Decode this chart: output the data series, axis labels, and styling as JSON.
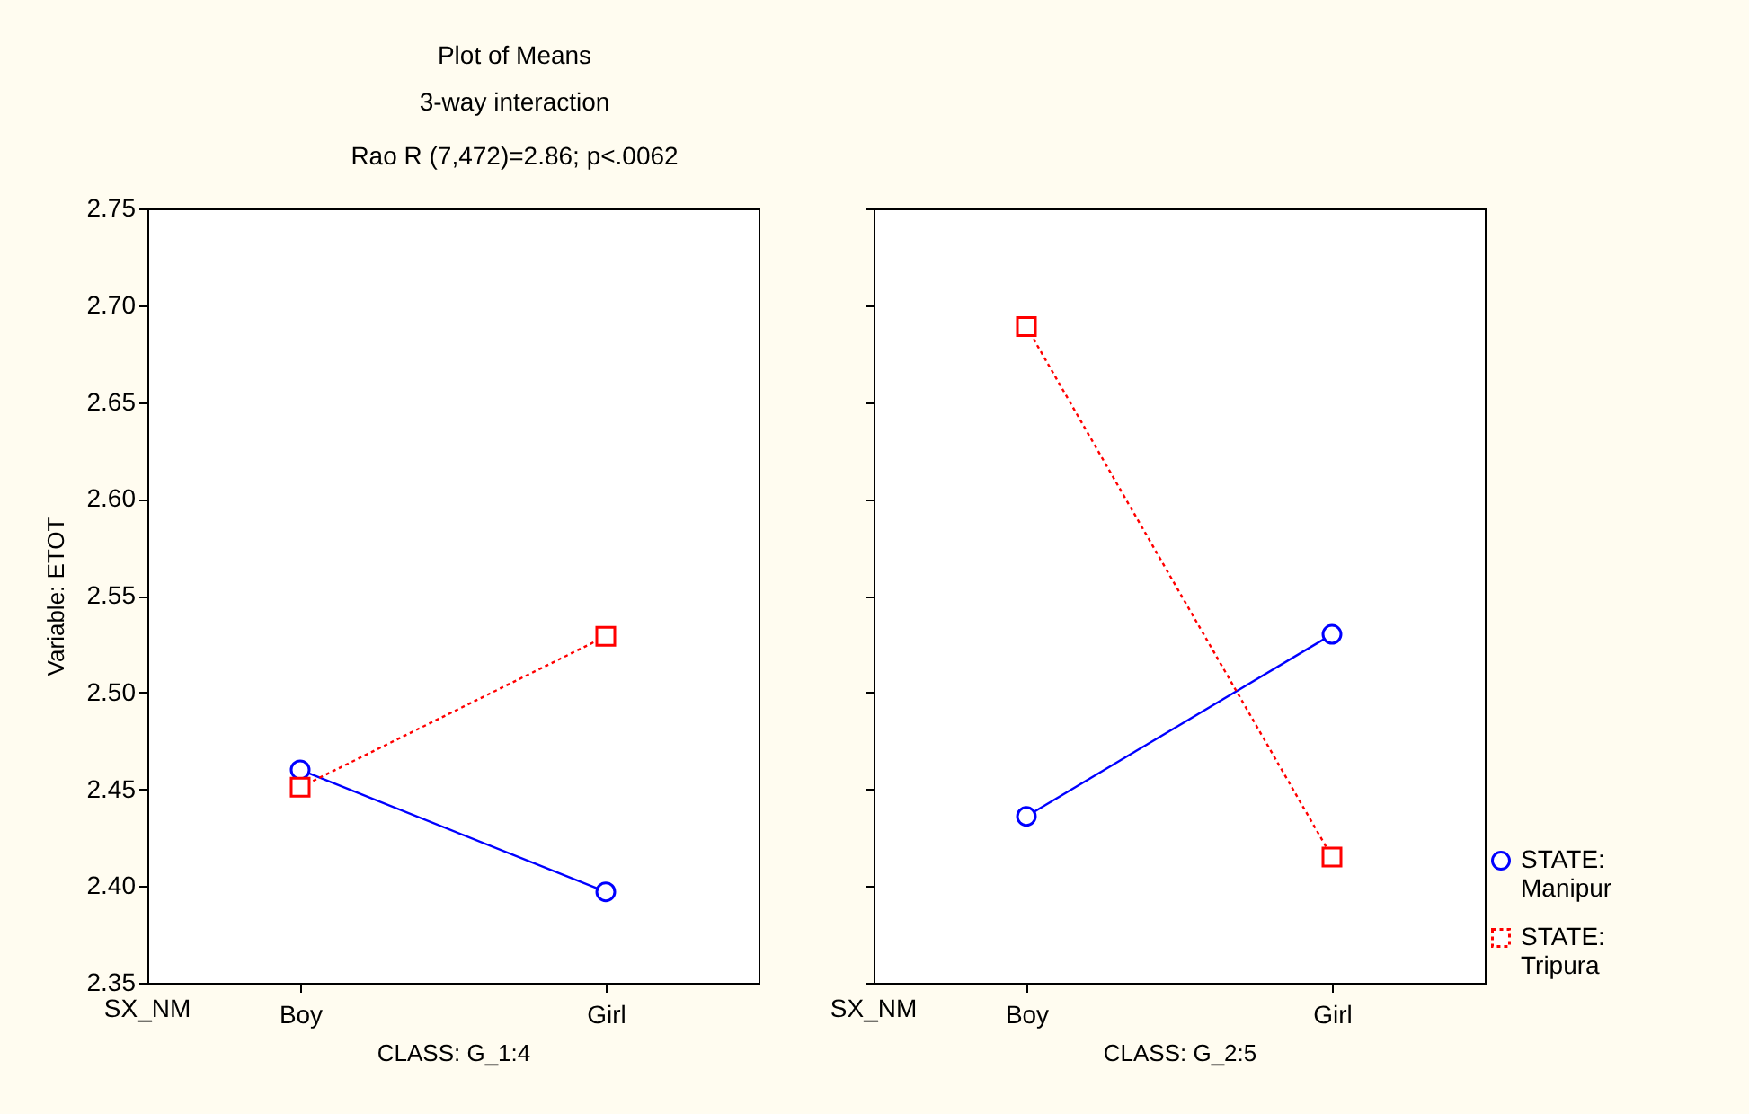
{
  "chart_data": [
    {
      "type": "line",
      "title": "Plot of Means",
      "subtitle": "3-way interaction",
      "annotations": [
        "Rao R (7,472)=2.86; p<.0062",
        "SX_NM"
      ],
      "xlabel": "CLASS: G_1:4",
      "ylabel": "Variable: ETOT",
      "categories": [
        "Boy",
        "Girl"
      ],
      "ylim": [
        2.35,
        2.75
      ],
      "yticks": [
        2.35,
        {
          "value": 2.4,
          "label": "2.40"
        },
        2.45,
        {
          "value": 2.5,
          "label": "2.50"
        },
        2.55,
        {
          "value": 2.6,
          "label": "2.60"
        },
        2.65,
        {
          "value": 2.7,
          "label": "2.70"
        },
        2.75
      ],
      "legend": "bottom right",
      "series": [
        {
          "name": "STATE: Manipur",
          "color": "#0000ff",
          "marker": "circle",
          "line_style": "solid",
          "values": [
            2.46,
            2.397
          ]
        },
        {
          "name": "STATE: Tripura",
          "color": "#ff0000",
          "marker": "square",
          "line_style": "dotted",
          "values": [
            2.451,
            2.529
          ]
        }
      ]
    },
    {
      "type": "line",
      "annotations": [
        "SX_NM"
      ],
      "xlabel": "CLASS: G_2:5",
      "categories": [
        "Boy",
        "Girl"
      ],
      "ylim": [
        2.35,
        2.75
      ],
      "yticks": [
        2.35,
        2.4,
        2.45,
        2.5,
        2.55,
        2.6,
        2.65,
        2.7,
        2.75
      ],
      "tick_labels": "x",
      "legend": "bottom right",
      "series": [
        {
          "name": "STATE: Manipur",
          "color": "#0000ff",
          "marker": "circle",
          "line_style": "solid",
          "values": [
            2.436,
            2.53
          ]
        },
        {
          "name": "STATE: Tripura",
          "color": "#ff0000",
          "marker": "square",
          "line_style": "dotted",
          "values": [
            2.689,
            2.415
          ]
        }
      ]
    }
  ]
}
